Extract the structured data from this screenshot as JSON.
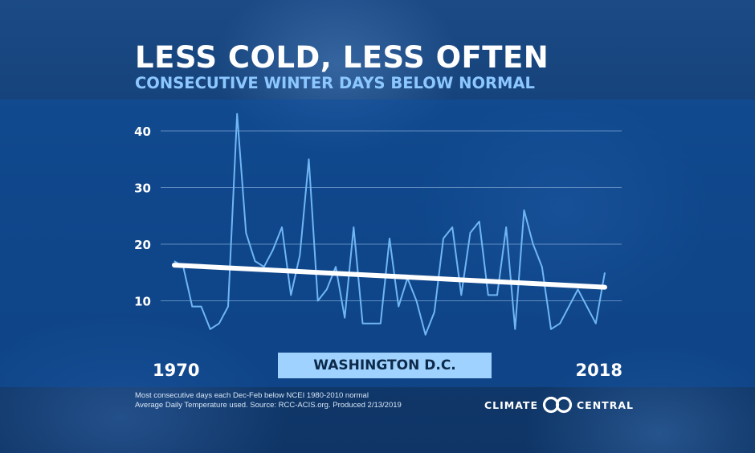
{
  "header": {
    "title": "LESS COLD, LESS OFTEN",
    "subtitle": "CONSECUTIVE WINTER DAYS BELOW NORMAL"
  },
  "location_label": "WASHINGTON D.C.",
  "footnote": {
    "line1": "Most consecutive days each Dec-Feb below NCEI 1980-2010 normal",
    "line2": "Average Daily Temperature used. Source: RCC-ACIS.org. Produced 2/13/2019"
  },
  "logo": {
    "left": "CLIMATE",
    "right": "CENTRAL"
  },
  "colors": {
    "series": "#6fb6f5",
    "trend": "#ffffff",
    "grid": "#7fa9d6"
  },
  "chart_data": {
    "type": "line",
    "title": "LESS COLD, LESS OFTEN",
    "subtitle": "CONSECUTIVE WINTER DAYS BELOW NORMAL",
    "x_tick_labels": [
      "1970",
      "2018"
    ],
    "y_ticks": [
      10,
      20,
      30,
      40
    ],
    "xlim": [
      1970,
      2018
    ],
    "ylim": [
      4,
      43
    ],
    "grid": true,
    "x": [
      1970,
      1971,
      1972,
      1973,
      1974,
      1975,
      1976,
      1977,
      1978,
      1979,
      1980,
      1981,
      1982,
      1983,
      1984,
      1985,
      1986,
      1987,
      1988,
      1989,
      1990,
      1991,
      1992,
      1993,
      1994,
      1995,
      1996,
      1997,
      1998,
      1999,
      2000,
      2001,
      2002,
      2003,
      2004,
      2005,
      2006,
      2007,
      2008,
      2009,
      2010,
      2011,
      2012,
      2013,
      2014,
      2015,
      2016,
      2017,
      2018
    ],
    "series": [
      {
        "values": [
          17,
          16,
          9,
          9,
          5,
          6,
          9,
          43,
          22,
          17,
          16,
          19,
          23,
          11,
          18,
          35,
          10,
          12,
          16,
          7,
          23,
          6,
          6,
          6,
          21,
          9,
          14,
          10,
          4,
          8,
          21,
          23,
          11,
          22,
          24,
          11,
          11,
          23,
          5,
          26,
          20,
          16,
          5,
          6,
          9,
          12,
          9,
          6,
          15
        ]
      }
    ],
    "trend": {
      "start": [
        1970,
        16.3
      ],
      "end": [
        2018,
        12.4
      ]
    }
  }
}
